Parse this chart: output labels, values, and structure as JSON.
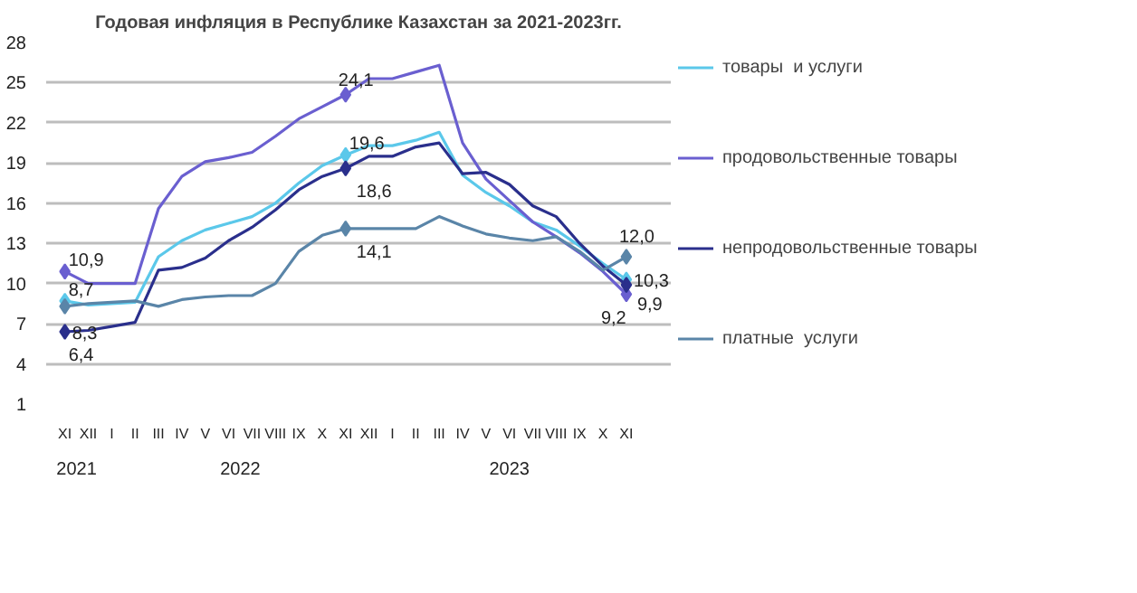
{
  "chart_data": {
    "type": "line",
    "title": "Годовая инфляция в Республике Казахстан за 2021-2023гг.",
    "categories": [
      "XI",
      "XII",
      "I",
      "II",
      "III",
      "IV",
      "V",
      "VI",
      "VII",
      "VIII",
      "IX",
      "X",
      "XI",
      "XII",
      "I",
      "II",
      "III",
      "IV",
      "V",
      "VI",
      "VII",
      "VIII",
      "IX",
      "X",
      "XI"
    ],
    "series": [
      {
        "name": "товары  и услуги",
        "color": "#5bc8ea",
        "values": [
          8.7,
          8.4,
          8.5,
          8.6,
          12.0,
          13.2,
          14.0,
          14.5,
          15.0,
          16.0,
          17.5,
          18.8,
          19.6,
          20.3,
          20.3,
          20.7,
          21.3,
          18.1,
          16.8,
          15.8,
          14.6,
          14.0,
          12.8,
          11.5,
          10.3
        ],
        "value_labels": [
          "8,7",
          null,
          null,
          null,
          null,
          null,
          null,
          null,
          null,
          null,
          null,
          null,
          "19,6",
          null,
          null,
          null,
          null,
          null,
          null,
          null,
          null,
          null,
          null,
          null,
          "10,3"
        ]
      },
      {
        "name": "продовольственные товары",
        "color": "#6a5fd0",
        "values": [
          10.9,
          10.0,
          10.0,
          10.0,
          15.6,
          18.0,
          19.1,
          19.4,
          19.8,
          21.0,
          22.3,
          23.2,
          24.1,
          25.3,
          25.3,
          25.8,
          26.3,
          20.5,
          17.8,
          16.2,
          14.6,
          13.5,
          12.3,
          10.9,
          9.2
        ],
        "value_labels": [
          "10,9",
          null,
          null,
          null,
          null,
          null,
          null,
          null,
          null,
          null,
          null,
          null,
          "24,1",
          null,
          null,
          null,
          null,
          null,
          null,
          null,
          null,
          null,
          null,
          null,
          "9,2"
        ]
      },
      {
        "name": "непродовольственные товары",
        "color": "#2a2f8c",
        "values": [
          6.4,
          6.5,
          6.8,
          7.1,
          11.0,
          11.2,
          11.9,
          13.2,
          14.2,
          15.5,
          17.0,
          18.0,
          18.6,
          19.5,
          19.5,
          20.2,
          20.5,
          18.2,
          18.3,
          17.4,
          15.8,
          15.0,
          13.0,
          11.3,
          9.9
        ],
        "value_labels": [
          "6,4",
          null,
          null,
          null,
          null,
          null,
          null,
          null,
          null,
          null,
          null,
          null,
          "18,6",
          null,
          null,
          null,
          null,
          null,
          null,
          null,
          null,
          null,
          null,
          null,
          "9,9"
        ]
      },
      {
        "name": "платные  услуги",
        "color": "#5a85a8",
        "values": [
          8.3,
          8.5,
          8.6,
          8.7,
          8.3,
          8.8,
          9.0,
          9.1,
          9.1,
          10.0,
          12.4,
          13.6,
          14.1,
          14.1,
          14.1,
          14.1,
          15.0,
          14.3,
          13.7,
          13.4,
          13.2,
          13.5,
          12.4,
          11.0,
          12.0
        ],
        "value_labels": [
          "8,3",
          null,
          null,
          null,
          null,
          null,
          null,
          null,
          null,
          null,
          null,
          null,
          "14,1",
          null,
          null,
          null,
          null,
          null,
          null,
          null,
          null,
          null,
          null,
          null,
          "12,0"
        ]
      }
    ],
    "ylim": [
      1,
      28
    ],
    "yticks": [
      1,
      4,
      7,
      10,
      13,
      16,
      19,
      22,
      25,
      28
    ],
    "grid": "y",
    "legend": "right",
    "line_style": "solid",
    "annotations": [
      "2021",
      "2022",
      "2023"
    ]
  }
}
